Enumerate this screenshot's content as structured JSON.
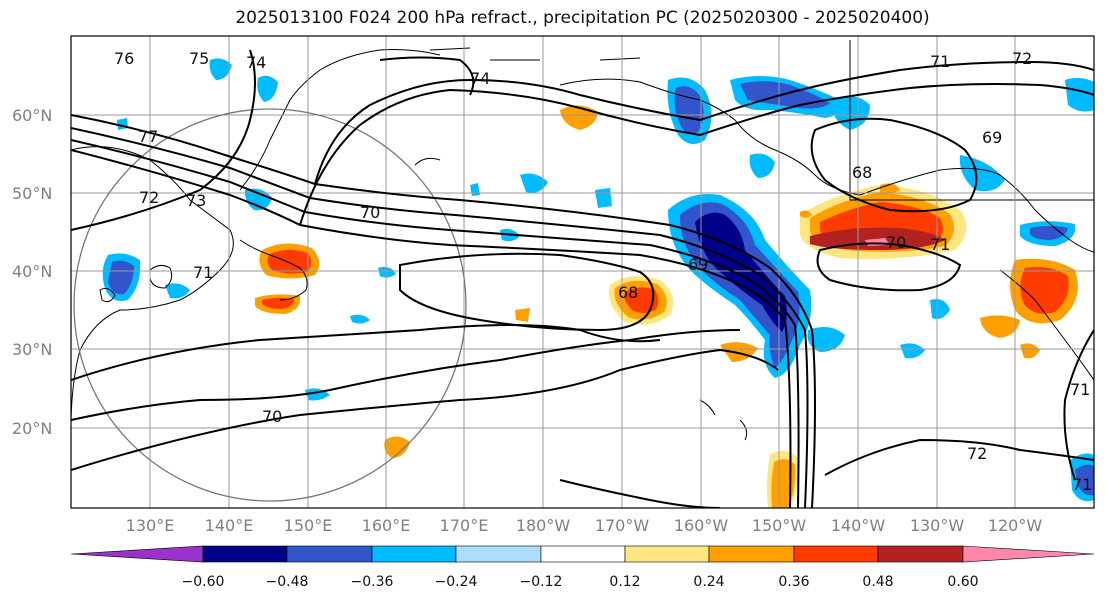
{
  "title": "2025013100 F024 200 hPa refract., precipitation PC (2025020300 - 2025020400)",
  "lat_labels": [
    "60°N",
    "50°N",
    "40°N",
    "30°N",
    "20°N"
  ],
  "lon_labels": [
    "130°E",
    "140°E",
    "150°E",
    "160°E",
    "170°E",
    "180°W",
    "170°W",
    "160°W",
    "150°W",
    "140°W",
    "130°W",
    "120°W"
  ],
  "colorbar": {
    "ticks": [
      "−0.60",
      "−0.48",
      "−0.36",
      "−0.24",
      "−0.12",
      "0.12",
      "0.24",
      "0.36",
      "0.48",
      "0.60"
    ],
    "colors": [
      "#9933cc",
      "#000088",
      "#3355cc",
      "#00bbff",
      "#aaddff",
      "#ffffff",
      "#ffe680",
      "#ff9f00",
      "#ff3b00",
      "#b22222",
      "#ff88aa"
    ]
  },
  "contour_labels": [
    "76",
    "75",
    "74",
    "74",
    "71",
    "72",
    "77",
    "73",
    "72",
    "71",
    "70",
    "69",
    "68",
    "70",
    "71",
    "69",
    "68",
    "70",
    "72",
    "71",
    "71"
  ]
}
